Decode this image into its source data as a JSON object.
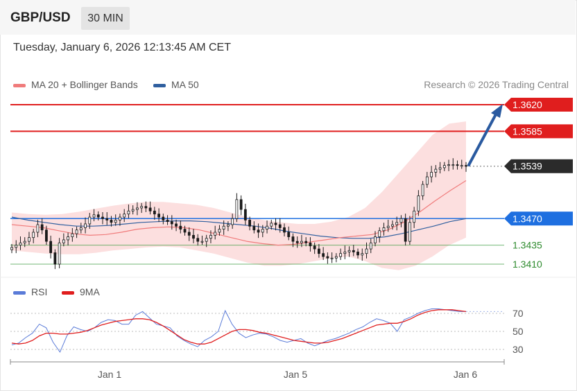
{
  "header": {
    "symbol": "GBP/USD",
    "timeframe": "30 MIN",
    "datetime": "Tuesday, January 6, 2026 12:13:45 AM CET",
    "credit": "Research © 2026 Trading Central"
  },
  "legend": {
    "ma20_label": "MA 20 + Bollinger Bands",
    "ma50_label": "MA 50",
    "rsi_label": "RSI",
    "rsi9_label": "9MA"
  },
  "colors": {
    "resistance": "#e01e1e",
    "support": "#43a047",
    "pivot": "#1e6fe0",
    "current": "#2b2b2b",
    "ma50": "#2f5f9f",
    "ma20": "#f07b7b",
    "bb_fill": "#fbd4d4",
    "rsi": "#5a7bd8",
    "rsi_ma": "#e01e1e",
    "arrow": "#2a5aa0",
    "candle": "#1a1a1a"
  },
  "chart_data": [
    {
      "type": "candlestick",
      "ylim": [
        1.3385,
        1.365
      ],
      "x_ticks": [
        "Jan 1",
        "Jan 5",
        "Jan 6"
      ],
      "levels": [
        {
          "label": "1.3620",
          "value": 1.362,
          "kind": "resistance"
        },
        {
          "label": "1.3585",
          "value": 1.3585,
          "kind": "resistance"
        },
        {
          "label": "1.3539",
          "value": 1.3539,
          "kind": "current"
        },
        {
          "label": "1.3470",
          "value": 1.347,
          "kind": "pivot"
        },
        {
          "label": "1.3435",
          "value": 1.3435,
          "kind": "support"
        },
        {
          "label": "1.3410",
          "value": 1.341,
          "kind": "support"
        }
      ],
      "close_path": [
        1.3432,
        1.3435,
        1.3438,
        1.344,
        1.3445,
        1.3452,
        1.3462,
        1.3455,
        1.344,
        1.3425,
        1.341,
        1.3438,
        1.3442,
        1.3446,
        1.345,
        1.3455,
        1.3458,
        1.3463,
        1.3472,
        1.3475,
        1.3472,
        1.347,
        1.3468,
        1.3465,
        1.3468,
        1.3472,
        1.3476,
        1.348,
        1.3482,
        1.3484,
        1.3486,
        1.3484,
        1.348,
        1.3476,
        1.3472,
        1.3468,
        1.3466,
        1.3463,
        1.346,
        1.3456,
        1.3452,
        1.3448,
        1.3444,
        1.344,
        1.344,
        1.3444,
        1.3448,
        1.3452,
        1.3456,
        1.346,
        1.3462,
        1.347,
        1.3495,
        1.3482,
        1.3468,
        1.346,
        1.3455,
        1.3452,
        1.3456,
        1.346,
        1.3464,
        1.3462,
        1.3458,
        1.3452,
        1.3446,
        1.344,
        1.3438,
        1.344,
        1.3438,
        1.3434,
        1.343,
        1.3424,
        1.342,
        1.3418,
        1.3418,
        1.342,
        1.3424,
        1.3426,
        1.3428,
        1.3426,
        1.3422,
        1.3424,
        1.343,
        1.3438,
        1.3446,
        1.3454,
        1.3458,
        1.346,
        1.3462,
        1.3465,
        1.347,
        1.344,
        1.3465,
        1.348,
        1.35,
        1.3515,
        1.3525,
        1.3531,
        1.3535,
        1.3537,
        1.354,
        1.3541,
        1.3541,
        1.354,
        1.354,
        1.3539
      ],
      "ma20_path": [
        1.3462,
        1.346,
        1.3458,
        1.3454,
        1.345,
        1.3448,
        1.3449,
        1.3452,
        1.3456,
        1.3458,
        1.3459,
        1.3458,
        1.3455,
        1.345,
        1.3445,
        1.344,
        1.3437,
        1.3435,
        1.3436,
        1.3439,
        1.3442,
        1.3445,
        1.3447,
        1.3449,
        1.3455,
        1.3465,
        1.3478,
        1.3493,
        1.3507,
        1.352
      ],
      "ma50_path": [
        1.3472,
        1.3468,
        1.3465,
        1.3462,
        1.346,
        1.346,
        1.3461,
        1.3463,
        1.3465,
        1.3466,
        1.3467,
        1.3467,
        1.3466,
        1.3464,
        1.3462,
        1.346,
        1.3457,
        1.3453,
        1.345,
        1.3447,
        1.3445,
        1.3444,
        1.3444,
        1.3446,
        1.345,
        1.3455,
        1.346,
        1.3466,
        1.347
      ],
      "bb_upper": [
        1.3478,
        1.3476,
        1.3475,
        1.3476,
        1.3479,
        1.3483,
        1.3487,
        1.349,
        1.3492,
        1.3492,
        1.349,
        1.3488,
        1.3484,
        1.3478,
        1.3472,
        1.3468,
        1.3465,
        1.3463,
        1.3463,
        1.3466,
        1.3472,
        1.3484,
        1.3505,
        1.353,
        1.3555,
        1.358,
        1.3595,
        1.3598
      ],
      "bb_lower": [
        1.3428,
        1.3426,
        1.3424,
        1.3423,
        1.3423,
        1.3425,
        1.3428,
        1.343,
        1.3432,
        1.3433,
        1.3432,
        1.3428,
        1.3424,
        1.3418,
        1.3412,
        1.3408,
        1.3408,
        1.341,
        1.3414,
        1.3418,
        1.342,
        1.3414,
        1.3405,
        1.3402,
        1.3408,
        1.342,
        1.3435,
        1.3445
      ]
    },
    {
      "type": "line",
      "ylim": [
        20,
        80
      ],
      "y_ticks": [
        "70",
        "50",
        "30"
      ],
      "series": [
        {
          "name": "RSI",
          "values": [
            35,
            37,
            43,
            48,
            58,
            54,
            38,
            27,
            45,
            55,
            52,
            50,
            54,
            60,
            63,
            62,
            58,
            58,
            68,
            72,
            65,
            58,
            56,
            54,
            45,
            40,
            36,
            33,
            40,
            44,
            50,
            73,
            58,
            48,
            43,
            46,
            48,
            47,
            44,
            40,
            38,
            40,
            42,
            37,
            34,
            37,
            40,
            42,
            45,
            48,
            52,
            55,
            60,
            64,
            62,
            59,
            50,
            63,
            66,
            70,
            73,
            75,
            75,
            74,
            73,
            72,
            72
          ]
        },
        {
          "name": "9MA",
          "values": [
            37,
            36,
            37,
            40,
            45,
            48,
            48,
            47,
            47,
            48,
            49,
            51,
            54,
            57,
            59,
            61,
            62,
            63,
            64,
            64,
            63,
            60,
            56,
            51,
            46,
            41,
            38,
            36,
            36,
            38,
            42,
            46,
            50,
            52,
            52,
            51,
            49,
            48,
            46,
            44,
            42,
            40,
            39,
            38,
            37,
            37,
            38,
            40,
            42,
            45,
            48,
            51,
            54,
            57,
            58,
            59,
            59,
            61,
            64,
            68,
            71,
            73,
            74,
            74,
            74,
            73,
            72
          ]
        }
      ]
    }
  ]
}
